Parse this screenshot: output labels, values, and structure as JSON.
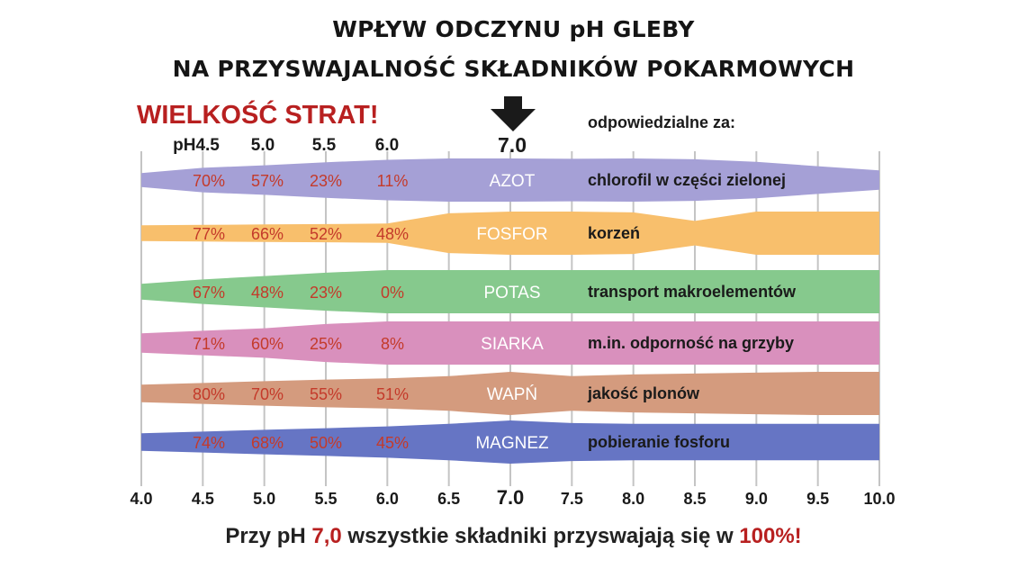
{
  "header": {
    "title_line1": "WPŁYW ODCZYNU pH GLEBY",
    "title_line2": "NA PRZYSWAJALNOŚĆ SKŁADNIKÓW POKARMOWYCH",
    "losses_heading": "WIELKOŚĆ STRAT!",
    "responsible_heading": "odpowiedzialne za:",
    "ph_column_labels": [
      "pH4.5",
      "5.0",
      "5.5",
      "6.0"
    ],
    "optimal_ph_label": "7.0"
  },
  "footer": {
    "part1": "Przy pH ",
    "ph_value": "7,0",
    "part2": " wszystkie składniki przyswajają się w ",
    "percent": "100%!"
  },
  "chart_data": {
    "type": "area",
    "title": "WPŁYW ODCZYNU pH GLEBY NA PRZYSWAJALNOŚĆ SKŁADNIKÓW POKARMOWYCH",
    "xlim": [
      4.0,
      10.0
    ],
    "x_ticks": [
      "4.0",
      "4.5",
      "5.0",
      "5.5",
      "6.0",
      "6.5",
      "7.0",
      "7.5",
      "8.0",
      "8.5",
      "9.0",
      "9.5",
      "10.0"
    ],
    "x_tick_values": [
      4.0,
      4.5,
      5.0,
      5.5,
      6.0,
      6.5,
      7.0,
      7.5,
      8.0,
      8.5,
      9.0,
      9.5,
      10.0
    ],
    "grid": true,
    "loss_ph_points": [
      4.5,
      5.0,
      5.5,
      6.0
    ],
    "nutrients": [
      {
        "name": "AZOT",
        "function": "chlorofil w części zielonej",
        "color": "#a5a0d6",
        "losses": [
          "70%",
          "57%",
          "23%",
          "11%"
        ],
        "availability": [
          [
            4.0,
            0.15
          ],
          [
            4.5,
            0.45
          ],
          [
            5.0,
            0.6
          ],
          [
            5.5,
            0.78
          ],
          [
            6.0,
            0.92
          ],
          [
            6.5,
            1.0
          ],
          [
            7.0,
            1.0
          ],
          [
            7.5,
            0.98
          ],
          [
            8.0,
            1.0
          ],
          [
            8.5,
            0.95
          ],
          [
            9.0,
            0.8
          ],
          [
            9.5,
            0.55
          ],
          [
            10.0,
            0.3
          ]
        ]
      },
      {
        "name": "FOSFOR",
        "function": "korzeń",
        "color": "#f8bf6c",
        "losses": [
          "77%",
          "66%",
          "52%",
          "48%"
        ],
        "availability": [
          [
            4.0,
            0.2
          ],
          [
            4.5,
            0.22
          ],
          [
            5.0,
            0.25
          ],
          [
            5.5,
            0.27
          ],
          [
            6.0,
            0.3
          ],
          [
            6.5,
            0.9
          ],
          [
            7.0,
            1.0
          ],
          [
            7.5,
            1.0
          ],
          [
            8.0,
            0.95
          ],
          [
            8.5,
            0.45
          ],
          [
            9.0,
            1.0
          ],
          [
            9.5,
            1.0
          ],
          [
            10.0,
            1.0
          ]
        ]
      },
      {
        "name": "POTAS",
        "function": "transport makroelementów",
        "color": "#86c98d",
        "losses": [
          "67%",
          "48%",
          "23%",
          "0%"
        ],
        "availability": [
          [
            4.0,
            0.2
          ],
          [
            4.5,
            0.45
          ],
          [
            5.0,
            0.65
          ],
          [
            5.5,
            0.85
          ],
          [
            6.0,
            1.0
          ],
          [
            6.5,
            1.0
          ],
          [
            7.0,
            1.0
          ],
          [
            7.5,
            1.0
          ],
          [
            8.0,
            1.0
          ],
          [
            8.5,
            1.0
          ],
          [
            9.0,
            1.0
          ],
          [
            9.5,
            1.0
          ],
          [
            10.0,
            1.0
          ]
        ]
      },
      {
        "name": "SIARKA",
        "function": "m.in. odporność na grzyby",
        "color": "#d990bd",
        "losses": [
          "71%",
          "60%",
          "25%",
          "8%"
        ],
        "availability": [
          [
            4.0,
            0.3
          ],
          [
            4.5,
            0.45
          ],
          [
            5.0,
            0.6
          ],
          [
            5.5,
            0.85
          ],
          [
            6.0,
            1.0
          ],
          [
            6.5,
            1.0
          ],
          [
            7.0,
            1.0
          ],
          [
            7.5,
            1.0
          ],
          [
            8.0,
            1.0
          ],
          [
            8.5,
            1.0
          ],
          [
            9.0,
            1.0
          ],
          [
            9.5,
            1.0
          ],
          [
            10.0,
            1.0
          ]
        ]
      },
      {
        "name": "WAPŃ",
        "function": "jakość plonów",
        "color": "#d49b7e",
        "losses": [
          "80%",
          "70%",
          "55%",
          "51%"
        ],
        "availability": [
          [
            4.0,
            0.25
          ],
          [
            4.5,
            0.35
          ],
          [
            5.0,
            0.45
          ],
          [
            5.5,
            0.55
          ],
          [
            6.0,
            0.62
          ],
          [
            6.5,
            0.75
          ],
          [
            7.0,
            1.0
          ],
          [
            7.5,
            0.75
          ],
          [
            8.0,
            0.85
          ],
          [
            8.5,
            0.9
          ],
          [
            9.0,
            0.95
          ],
          [
            9.5,
            1.0
          ],
          [
            10.0,
            1.0
          ]
        ]
      },
      {
        "name": "MAGNEZ",
        "function": "pobieranie fosforu",
        "color": "#6675c4",
        "losses": [
          "74%",
          "68%",
          "50%",
          "45%"
        ],
        "availability": [
          [
            4.0,
            0.25
          ],
          [
            4.5,
            0.35
          ],
          [
            5.0,
            0.45
          ],
          [
            5.5,
            0.55
          ],
          [
            6.0,
            0.65
          ],
          [
            6.5,
            0.8
          ],
          [
            7.0,
            1.0
          ],
          [
            7.5,
            0.85
          ],
          [
            8.0,
            0.8
          ],
          [
            8.5,
            0.8
          ],
          [
            9.0,
            0.8
          ],
          [
            9.5,
            0.8
          ],
          [
            10.0,
            0.8
          ]
        ]
      }
    ]
  }
}
